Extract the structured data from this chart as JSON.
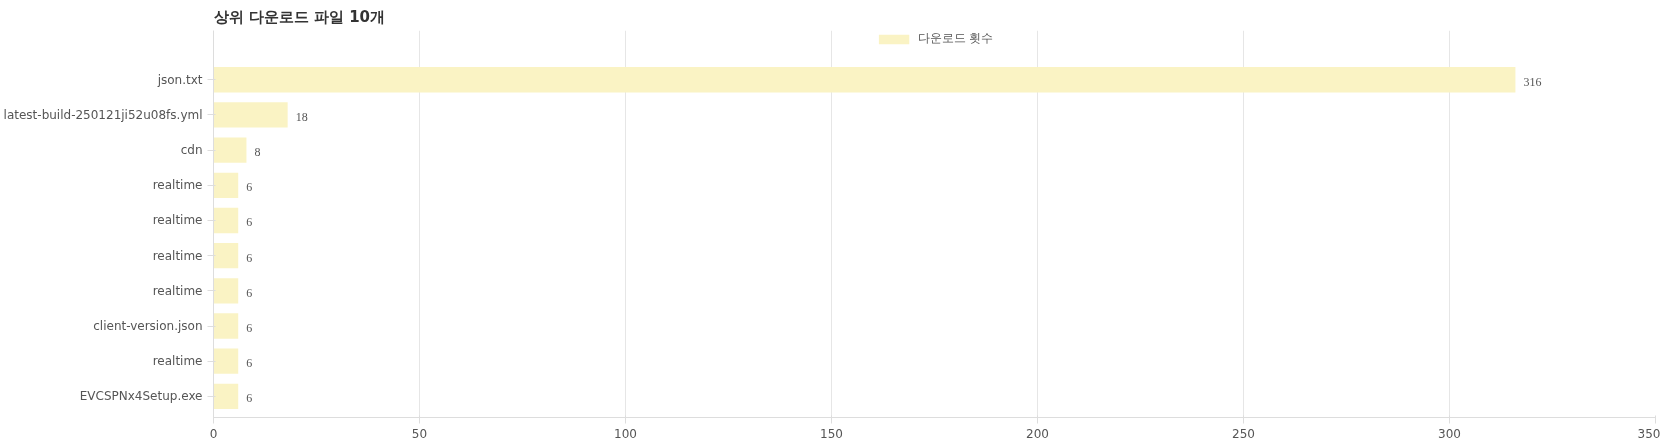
{
  "chart_data": {
    "type": "bar",
    "orientation": "horizontal",
    "title": "상위 다운로드 파일 10개",
    "categories": [
      "json.txt",
      "latest-build-250121ji52u08fs.yml",
      "cdn",
      "realtime",
      "realtime",
      "realtime",
      "realtime",
      "client-version.json",
      "realtime",
      "EVCSPNx4Setup.exe"
    ],
    "series": [
      {
        "name": "다운로드 횟수",
        "color": "#faf3c4",
        "values": [
          316,
          18,
          8,
          6,
          6,
          6,
          6,
          6,
          6,
          6
        ]
      }
    ],
    "xlim": [
      0,
      350
    ],
    "xticks": [
      0,
      50,
      100,
      150,
      200,
      250,
      300,
      350
    ],
    "grid": "x",
    "legend": "top",
    "data_labels": true
  }
}
